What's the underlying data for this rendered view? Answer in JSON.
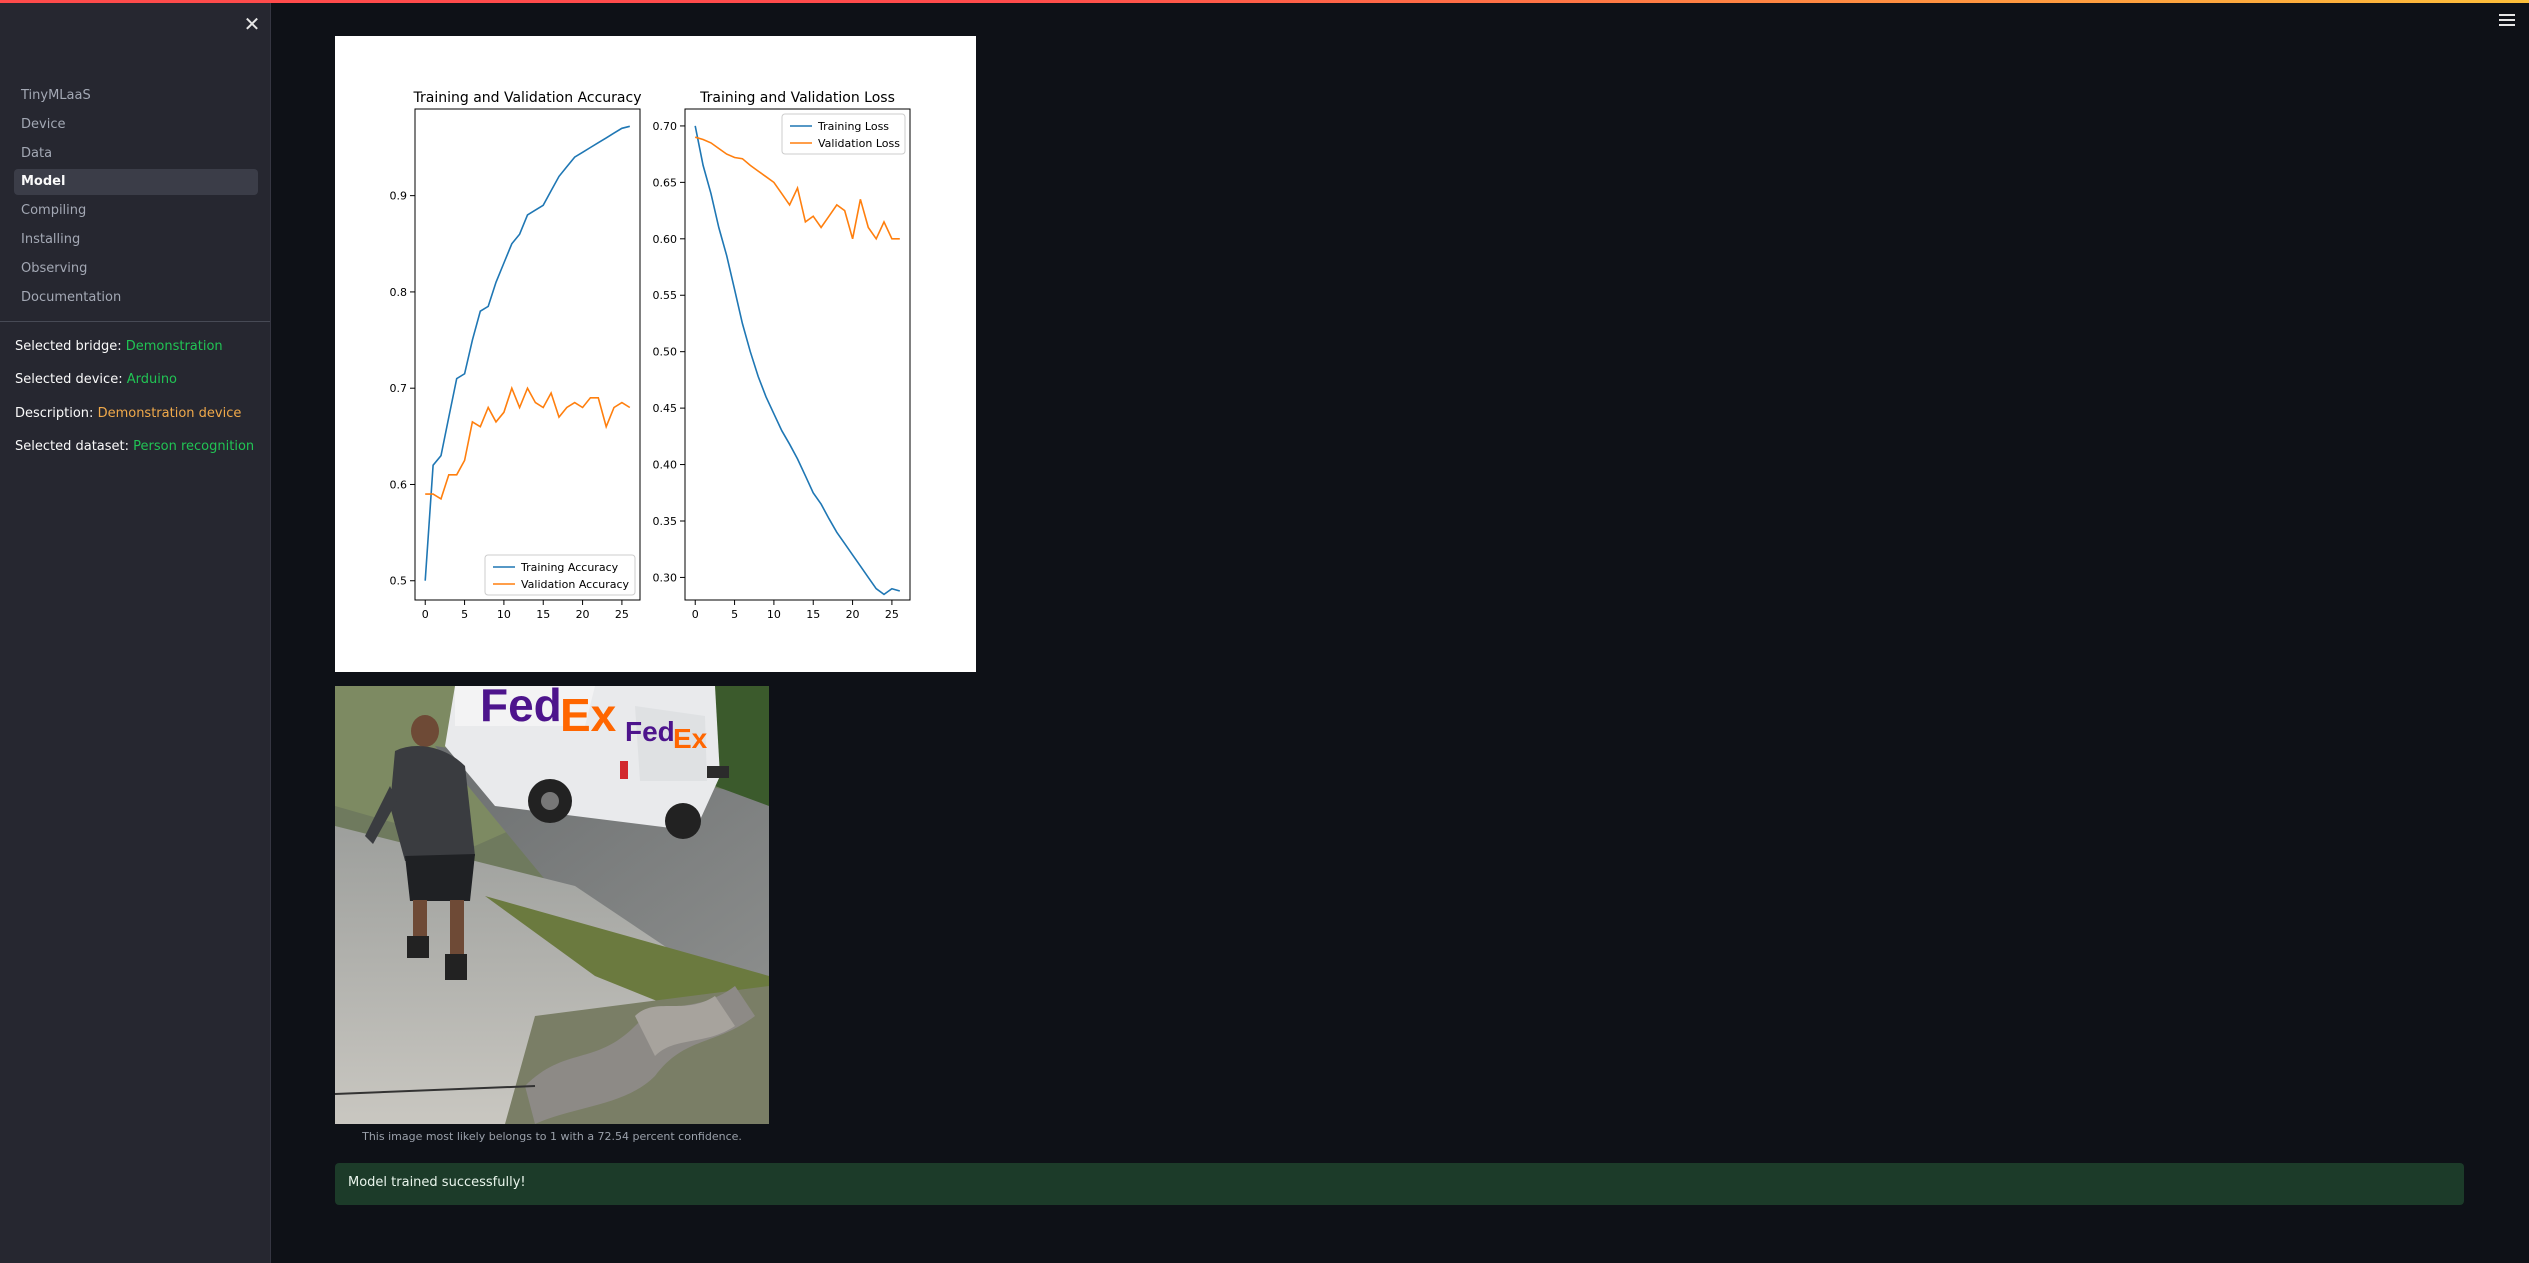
{
  "sidebar": {
    "close_icon": "close-icon",
    "nav": [
      {
        "label": "TinyMLaaS",
        "active": false
      },
      {
        "label": "Device",
        "active": false
      },
      {
        "label": "Data",
        "active": false
      },
      {
        "label": "Model",
        "active": true
      },
      {
        "label": "Compiling",
        "active": false
      },
      {
        "label": "Installing",
        "active": false
      },
      {
        "label": "Observing",
        "active": false
      },
      {
        "label": "Documentation",
        "active": false
      }
    ],
    "info": {
      "bridge_label": "Selected bridge: ",
      "bridge_value": "Demonstration",
      "device_label": "Selected device: ",
      "device_value": "Arduino",
      "description_label": "Description: ",
      "description_value": "Demonstration device",
      "dataset_label": "Selected dataset: ",
      "dataset_value": "Person recognition"
    }
  },
  "header": {
    "menu_icon": "hamburger-menu-icon"
  },
  "colors": {
    "accent_green": "#21c354",
    "accent_orange": "#f0a94a",
    "training_series": "#1f77b4",
    "validation_series": "#ff7f0e"
  },
  "chart_data": [
    {
      "type": "line",
      "title": "Training and Validation Accuracy",
      "xlabel": "",
      "ylabel": "",
      "xlim": [
        -1.3,
        27.3
      ],
      "ylim": [
        0.48,
        0.99
      ],
      "xticks": [
        "0",
        "5",
        "10",
        "15",
        "20",
        "25"
      ],
      "yticks": [
        "0.5",
        "0.6",
        "0.7",
        "0.8",
        "0.9"
      ],
      "legend": "lower-right",
      "grid": false,
      "x": [
        0,
        1,
        2,
        3,
        4,
        5,
        6,
        7,
        8,
        9,
        10,
        11,
        12,
        13,
        14,
        15,
        16,
        17,
        18,
        19,
        20,
        21,
        22,
        23,
        24,
        25,
        26
      ],
      "series": [
        {
          "name": "Training Accuracy",
          "values": [
            0.5,
            0.62,
            0.63,
            0.67,
            0.71,
            0.715,
            0.75,
            0.78,
            0.785,
            0.81,
            0.83,
            0.85,
            0.86,
            0.88,
            0.885,
            0.89,
            0.905,
            0.92,
            0.93,
            0.94,
            0.945,
            0.95,
            0.955,
            0.96,
            0.965,
            0.97,
            0.972
          ]
        },
        {
          "name": "Validation Accuracy",
          "values": [
            0.59,
            0.59,
            0.585,
            0.61,
            0.61,
            0.625,
            0.665,
            0.66,
            0.68,
            0.665,
            0.675,
            0.7,
            0.68,
            0.7,
            0.685,
            0.68,
            0.695,
            0.67,
            0.68,
            0.685,
            0.68,
            0.69,
            0.69,
            0.66,
            0.68,
            0.685,
            0.68
          ]
        }
      ]
    },
    {
      "type": "line",
      "title": "Training and Validation Loss",
      "xlabel": "",
      "ylabel": "",
      "xlim": [
        -1.3,
        27.3
      ],
      "ylim": [
        0.28,
        0.715
      ],
      "xticks": [
        "0",
        "5",
        "10",
        "15",
        "20",
        "25"
      ],
      "yticks": [
        "0.30",
        "0.35",
        "0.40",
        "0.45",
        "0.50",
        "0.55",
        "0.60",
        "0.65",
        "0.70"
      ],
      "legend": "top-right",
      "grid": false,
      "x": [
        0,
        1,
        2,
        3,
        4,
        5,
        6,
        7,
        8,
        9,
        10,
        11,
        12,
        13,
        14,
        15,
        16,
        17,
        18,
        19,
        20,
        21,
        22,
        23,
        24,
        25,
        26
      ],
      "series": [
        {
          "name": "Training Loss",
          "values": [
            0.7,
            0.665,
            0.64,
            0.61,
            0.585,
            0.555,
            0.525,
            0.5,
            0.478,
            0.46,
            0.445,
            0.43,
            0.418,
            0.405,
            0.39,
            0.375,
            0.365,
            0.352,
            0.34,
            0.33,
            0.32,
            0.31,
            0.3,
            0.29,
            0.285,
            0.29,
            0.288
          ]
        },
        {
          "name": "Validation Loss",
          "values": [
            0.69,
            0.688,
            0.685,
            0.68,
            0.675,
            0.672,
            0.671,
            0.665,
            0.66,
            0.655,
            0.65,
            0.64,
            0.63,
            0.645,
            0.615,
            0.62,
            0.61,
            0.62,
            0.63,
            0.625,
            0.6,
            0.635,
            0.61,
            0.6,
            0.615,
            0.6,
            0.6
          ]
        }
      ]
    }
  ],
  "image": {
    "name": "delivery-person-photo"
  },
  "prediction": {
    "caption": "This image most likely belongs to 1 with a 72.54 percent confidence."
  },
  "status": {
    "message": "Model trained successfully!"
  }
}
